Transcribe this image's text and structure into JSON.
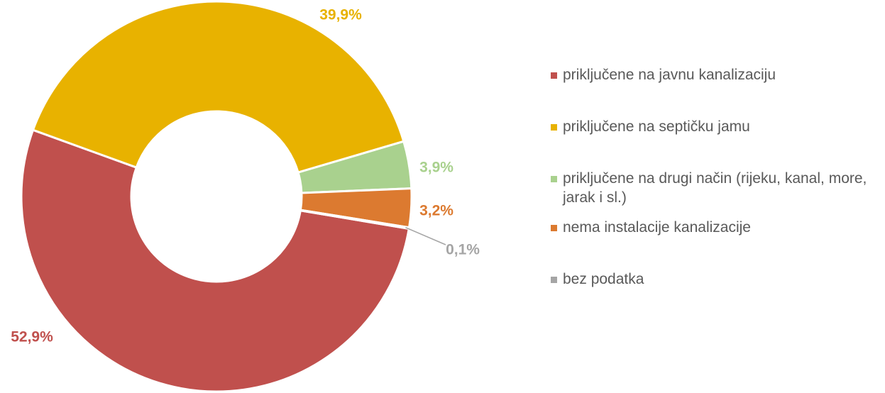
{
  "chart_data": {
    "type": "donut",
    "categories": [
      "priključene na javnu kanalizaciju",
      "priključene na septičku jamu",
      "priključene na drugi način (rijeku, kanal, more, jarak i sl.)",
      "nema instalacije kanalizacije",
      "bez podatka"
    ],
    "values": [
      52.9,
      39.9,
      3.9,
      3.2,
      0.1
    ],
    "value_labels": [
      "52,9%",
      "39,9%",
      "3,9%",
      "3,2%",
      "0,1%"
    ],
    "colors": [
      "#c0504d",
      "#e8b200",
      "#a9d18e",
      "#dc7a30",
      "#a5a5a5"
    ],
    "legend": "right"
  }
}
